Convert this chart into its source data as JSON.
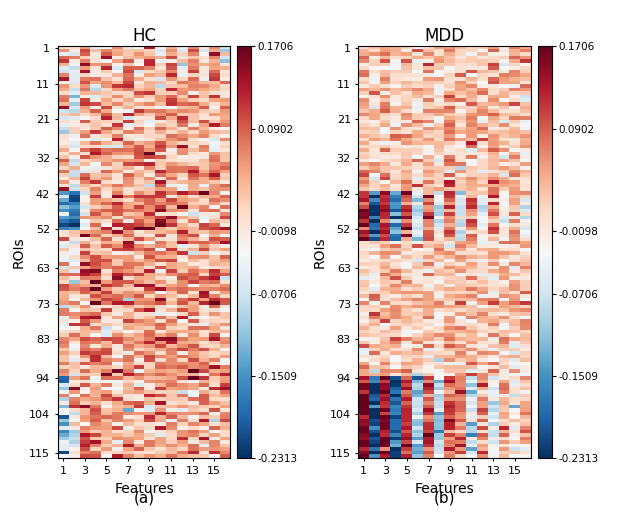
{
  "title_hc": "HC",
  "title_mdd": "MDD",
  "xlabel": "Features",
  "ylabel": "ROIs",
  "colorbar_ticks": [
    0.1706,
    0.0902,
    -0.0098,
    -0.0706,
    -0.1509,
    -0.2313
  ],
  "colorbar_labels": [
    "0.1706",
    "0.0902",
    "-0.0098",
    "-0.0706",
    "-0.1509",
    "-0.2313"
  ],
  "vmin": -0.2313,
  "vmax": 0.1706,
  "n_rois": 116,
  "n_features": 16,
  "x_ticks": [
    1,
    3,
    5,
    7,
    9,
    11,
    13,
    15
  ],
  "y_ticks": [
    1,
    11,
    21,
    32,
    42,
    52,
    63,
    73,
    83,
    94,
    104,
    115
  ],
  "label_a": "(a)",
  "label_b": "(b)",
  "figsize": [
    6.4,
    5.15
  ],
  "dpi": 100,
  "background": "#ffffff"
}
